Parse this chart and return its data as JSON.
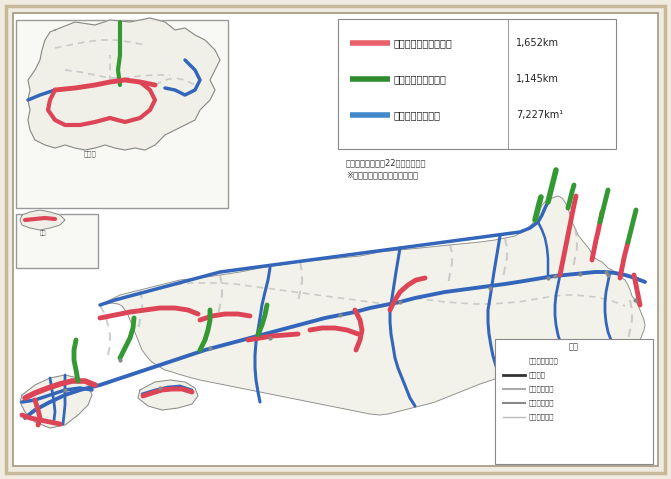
{
  "background_color": "#f0ebe0",
  "inner_bg": "#ffffff",
  "frame_outer_color": "#c8b89a",
  "frame_inner_color": "#a09880",
  "legend_items": [
    {
      "color": "#e8606a",
      "label": "：無料化社会実験区間",
      "value": "1,652km",
      "lw": 4
    },
    {
      "color": "#2e8b2e",
      "label": "：無料で供用中区間",
      "value": "1,145km",
      "lw": 4
    },
    {
      "color": "#4488cc",
      "label": "：その他有料区間",
      "value": "7,227km¹",
      "lw": 4
    }
  ],
  "note_line1": "（注）延長は平成22年度末見込み",
  "note_line2": "※首都高・阪高を除く高速道路",
  "road_blue": "#3366bb",
  "road_red": "#dd4455",
  "road_green": "#339933",
  "road_gray": "#cccccc",
  "road_dashed": "#bbbbbb",
  "legend_title_color": "#222222",
  "text_color": "#333333"
}
